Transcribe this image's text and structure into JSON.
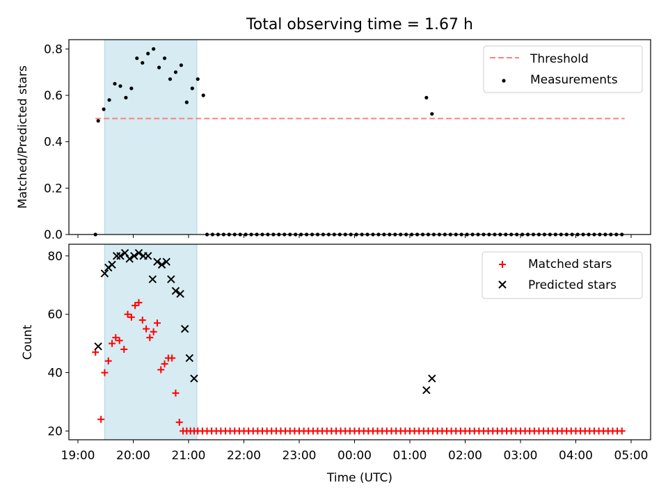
{
  "figure": {
    "title": "Total observing time = 1.67 h",
    "xlabel": "Time (UTC)"
  },
  "chart_data": [
    {
      "type": "scatter",
      "ylabel": "Matched/Predicted stars",
      "xlim": [
        "19:00",
        "05:00"
      ],
      "ylim": [
        0,
        0.84
      ],
      "yticks": [
        "0.0",
        "0.2",
        "0.4",
        "0.6",
        "0.8"
      ],
      "xtick_labels": [
        "19:00",
        "20:00",
        "21:00",
        "22:00",
        "23:00",
        "00:00",
        "01:00",
        "02:00",
        "03:00",
        "04:00",
        "05:00"
      ],
      "shaded_region": {
        "start": "19:29",
        "end": "21:09",
        "color": "#add8e6"
      },
      "legend_position": "upper right",
      "series": [
        {
          "name": "Threshold",
          "style": "dashed-line",
          "color": "#ff7f7f",
          "x": [
            "19:19",
            "04:53"
          ],
          "y": [
            0.5,
            0.5
          ]
        },
        {
          "name": "Measurements",
          "style": "dot",
          "color": "#000000",
          "x": [
            "19:19",
            "19:22",
            "19:28",
            "19:34",
            "19:40",
            "19:46",
            "19:52",
            "19:58",
            "20:04",
            "20:10",
            "20:16",
            "20:22",
            "20:28",
            "20:34",
            "20:40",
            "20:46",
            "20:52",
            "20:58",
            "21:04",
            "21:10",
            "21:16",
            "01:18",
            "01:24"
          ],
          "y": [
            0.0,
            0.49,
            0.54,
            0.58,
            0.65,
            0.64,
            0.59,
            0.63,
            0.76,
            0.74,
            0.78,
            0.8,
            0.72,
            0.76,
            0.67,
            0.7,
            0.73,
            0.57,
            0.63,
            0.67,
            0.6,
            0.59,
            0.52
          ],
          "zero_run": {
            "start": "21:20",
            "end": "04:53",
            "step_min": 6,
            "value": 0.0
          }
        }
      ]
    },
    {
      "type": "scatter",
      "ylabel": "Count",
      "xlim": [
        "19:00",
        "05:00"
      ],
      "ylim": [
        17,
        84
      ],
      "yticks": [
        "20",
        "40",
        "60",
        "80"
      ],
      "xtick_labels": [
        "19:00",
        "20:00",
        "21:00",
        "22:00",
        "23:00",
        "00:00",
        "01:00",
        "02:00",
        "03:00",
        "04:00",
        "05:00"
      ],
      "shaded_region": {
        "start": "19:29",
        "end": "21:09",
        "color": "#add8e6"
      },
      "legend_position": "upper right",
      "series": [
        {
          "name": "Matched stars",
          "style": "plus",
          "color": "#ff0000",
          "x": [
            "19:19",
            "19:25",
            "19:29",
            "19:33",
            "19:37",
            "19:41",
            "19:45",
            "19:50",
            "19:54",
            "19:58",
            "20:02",
            "20:06",
            "20:10",
            "20:14",
            "20:18",
            "20:22",
            "20:26",
            "20:30",
            "20:34",
            "20:38",
            "20:42",
            "20:46",
            "20:50",
            "20:54",
            "20:58",
            "21:02",
            "21:06"
          ],
          "y": [
            47,
            24,
            40,
            44,
            50,
            52,
            51,
            48,
            60,
            59,
            63,
            64,
            58,
            55,
            52,
            54,
            57,
            41,
            43,
            45,
            45,
            33,
            23,
            20,
            20,
            20,
            20
          ],
          "floor_run": {
            "start": "21:10",
            "end": "04:53",
            "step_min": 5,
            "value": 20
          }
        },
        {
          "name": "Predicted stars",
          "style": "x",
          "color": "#000000",
          "x": [
            "19:22",
            "19:29",
            "19:33",
            "19:37",
            "19:42",
            "19:46",
            "19:51",
            "19:56",
            "20:01",
            "20:06",
            "20:11",
            "20:16",
            "20:21",
            "20:26",
            "20:31",
            "20:36",
            "20:41",
            "20:46",
            "20:51",
            "20:56",
            "21:01",
            "21:06",
            "01:18",
            "01:24"
          ],
          "y": [
            49,
            74,
            76,
            77,
            80,
            80,
            81,
            79,
            80,
            81,
            80,
            80,
            72,
            78,
            77,
            78,
            72,
            68,
            67,
            55,
            45,
            38,
            34,
            38
          ]
        }
      ]
    }
  ]
}
